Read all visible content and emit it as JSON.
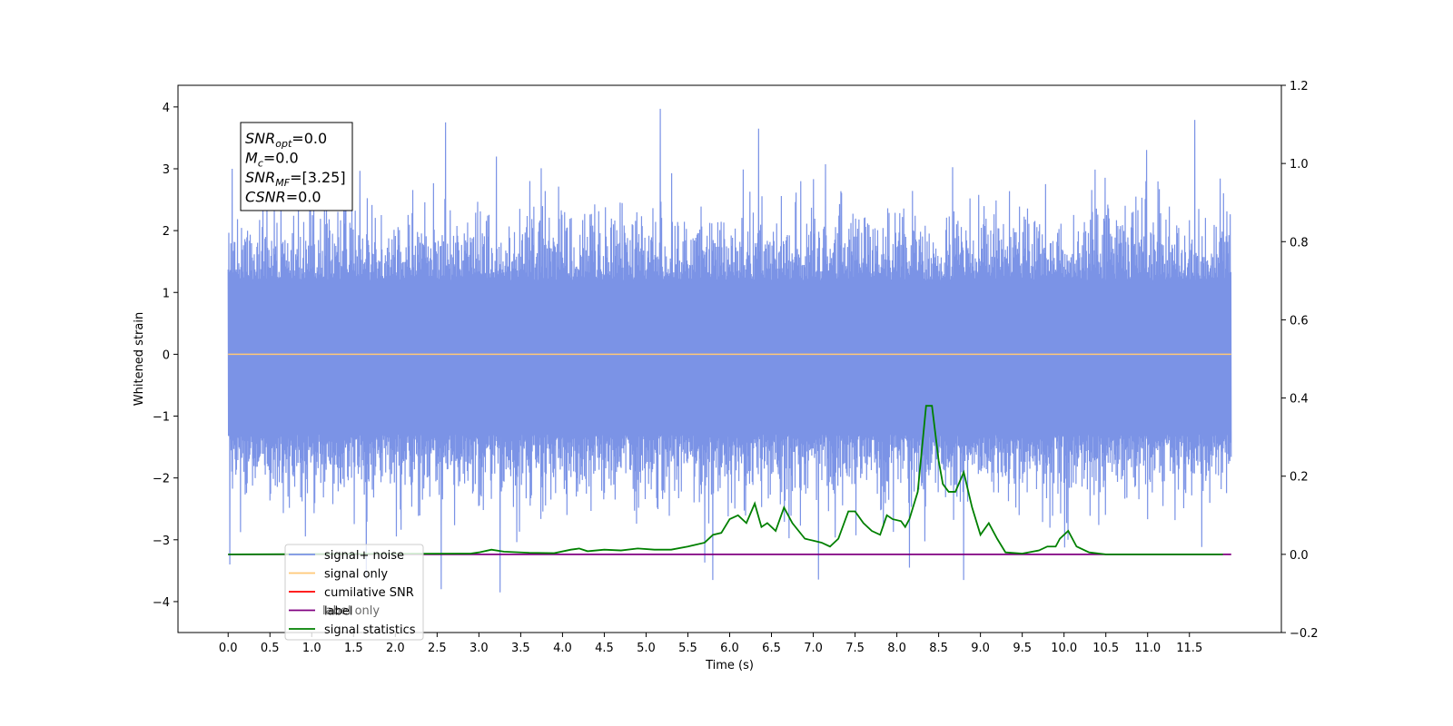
{
  "chart_data": {
    "type": "line",
    "xlabel": "Time (s)",
    "ylabel": "Whitened strain",
    "xlim": [
      -0.6,
      12.6
    ],
    "ylim": [
      -4.5,
      4.35
    ],
    "y2lim": [
      -0.2,
      1.2
    ],
    "x_ticks": [
      "0.0",
      "0.5",
      "1.0",
      "1.5",
      "2.0",
      "2.5",
      "3.0",
      "3.5",
      "4.0",
      "4.5",
      "5.0",
      "5.5",
      "6.0",
      "6.5",
      "7.0",
      "7.5",
      "8.0",
      "8.5",
      "9.0",
      "9.5",
      "10.0",
      "10.5",
      "11.0",
      "11.5"
    ],
    "y_ticks": [
      "4",
      "3",
      "2",
      "1",
      "0",
      "−1",
      "−2",
      "−3",
      "−4"
    ],
    "y2_ticks": [
      "1.2",
      "1.0",
      "0.8",
      "0.6",
      "0.4",
      "0.2",
      "0.0",
      "−0.2"
    ],
    "info_box": [
      {
        "main": "SNR",
        "sub": "opt",
        "value": "=0.0"
      },
      {
        "main": "M",
        "sub": "c",
        "value": "=0.0"
      },
      {
        "main": "SNR",
        "sub": "MF",
        "value": "=[3.25]"
      },
      {
        "main": "CSNR",
        "sub": "",
        "value": "=0.0"
      }
    ],
    "legend": {
      "placement": "lower-left",
      "entries": [
        {
          "label": "signal+ noise",
          "color": "#7b93e6"
        },
        {
          "label": "signal only",
          "color": "#ffc876"
        },
        {
          "label": "cumilative SNR",
          "color": "#ff0000"
        },
        {
          "label": "label",
          "color": "#800080"
        },
        {
          "label": "signal statistics",
          "color": "#008000"
        }
      ],
      "hidden_label": "label only"
    },
    "series": [
      {
        "name": "signal+ noise",
        "axis": "left",
        "color": "#7b93e6",
        "description_range": [
          0.0,
          12.0
        ],
        "approx_range": [
          -3.85,
          4.0
        ],
        "peaks": [
          {
            "x": 0.02,
            "y": -3.4
          },
          {
            "x": 0.05,
            "y": 3.0
          },
          {
            "x": 2.6,
            "y": 3.75
          },
          {
            "x": 2.55,
            "y": -3.8
          },
          {
            "x": 3.25,
            "y": -3.85
          },
          {
            "x": 5.17,
            "y": 3.97
          },
          {
            "x": 5.8,
            "y": -3.65
          },
          {
            "x": 6.35,
            "y": 3.65
          },
          {
            "x": 8.15,
            "y": -3.45
          },
          {
            "x": 8.8,
            "y": -3.65
          },
          {
            "x": 10.05,
            "y": -3.0
          }
        ]
      },
      {
        "name": "signal only",
        "axis": "left",
        "color": "#ffc876",
        "x": [
          0.0,
          12.0
        ],
        "y": [
          0.0,
          0.0
        ]
      },
      {
        "name": "label",
        "axis": "right",
        "color": "#800080",
        "x": [
          0.0,
          12.0
        ],
        "y": [
          0.0,
          0.0
        ]
      },
      {
        "name": "signal statistics",
        "axis": "right",
        "color": "#008000",
        "x": [
          0.0,
          2.9,
          3.0,
          3.15,
          3.3,
          3.6,
          3.9,
          4.1,
          4.2,
          4.3,
          4.5,
          4.7,
          4.9,
          5.1,
          5.3,
          5.5,
          5.7,
          5.8,
          5.9,
          6.0,
          6.1,
          6.2,
          6.3,
          6.38,
          6.45,
          6.55,
          6.65,
          6.75,
          6.9,
          7.0,
          7.1,
          7.2,
          7.3,
          7.42,
          7.5,
          7.6,
          7.7,
          7.8,
          7.88,
          7.95,
          8.05,
          8.1,
          8.15,
          8.25,
          8.35,
          8.42,
          8.5,
          8.55,
          8.62,
          8.7,
          8.8,
          8.9,
          9.0,
          9.1,
          9.2,
          9.3,
          9.5,
          9.7,
          9.8,
          9.9,
          9.95,
          10.05,
          10.15,
          10.3,
          10.5,
          11.0,
          11.5,
          11.9
        ],
        "y": [
          0.0,
          0.002,
          0.005,
          0.012,
          0.007,
          0.004,
          0.003,
          0.012,
          0.015,
          0.008,
          0.012,
          0.01,
          0.015,
          0.012,
          0.012,
          0.02,
          0.03,
          0.05,
          0.055,
          0.09,
          0.1,
          0.08,
          0.13,
          0.07,
          0.08,
          0.06,
          0.12,
          0.08,
          0.04,
          0.035,
          0.03,
          0.02,
          0.04,
          0.11,
          0.11,
          0.08,
          0.06,
          0.05,
          0.1,
          0.09,
          0.085,
          0.07,
          0.09,
          0.16,
          0.38,
          0.38,
          0.24,
          0.18,
          0.16,
          0.16,
          0.21,
          0.12,
          0.05,
          0.08,
          0.04,
          0.005,
          0.002,
          0.01,
          0.02,
          0.02,
          0.04,
          0.06,
          0.02,
          0.005,
          0.0,
          0.0,
          0.0,
          0.0
        ]
      }
    ]
  }
}
